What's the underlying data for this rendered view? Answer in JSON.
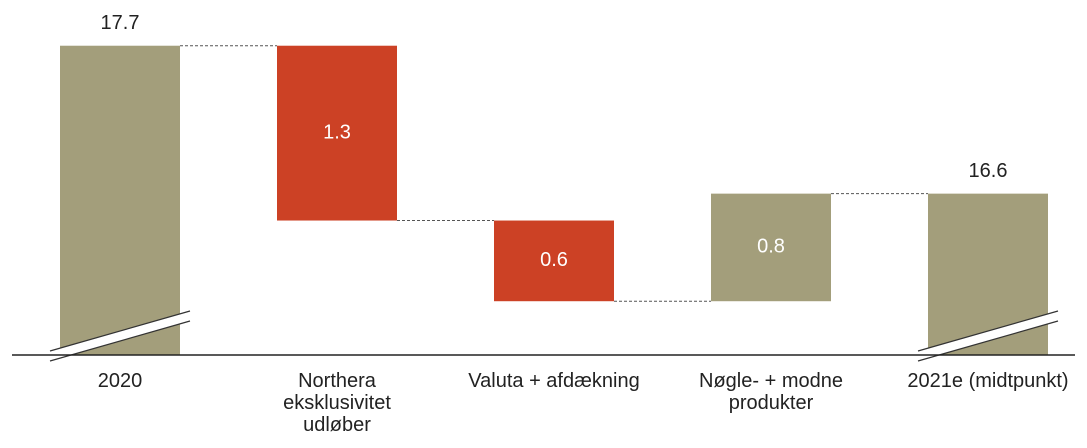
{
  "chart_data": {
    "type": "waterfall",
    "categories": [
      "2020",
      "Northera eksklusivitet udløber",
      "Valuta + afdækning",
      "Nøgle- + modne produkter",
      "2021e (midtpunkt)"
    ],
    "values": [
      17.7,
      -1.3,
      -0.6,
      0.8,
      16.6
    ],
    "value_labels": [
      "17.7",
      "1.3",
      "0.6",
      "0.8",
      "16.6"
    ],
    "measure": [
      "absolute",
      "relative",
      "relative",
      "relative",
      "absolute"
    ],
    "colors": {
      "total": "#a39e7b",
      "increase": "#a39e7b",
      "decrease": "#cc4125"
    },
    "ylim": [
      15.4,
      18.04
    ],
    "axis_break": true
  }
}
